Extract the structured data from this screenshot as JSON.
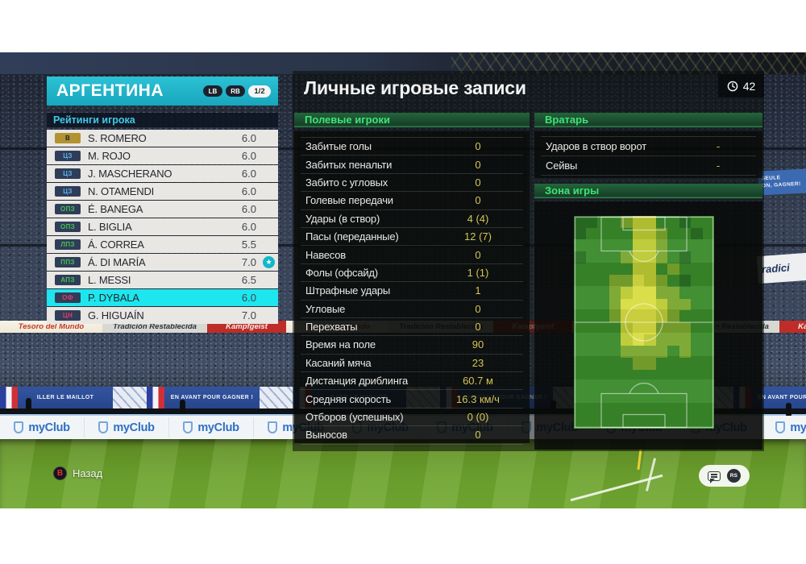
{
  "team_panel": {
    "team_name": "АРГЕНТИНА",
    "lb_label": "LB",
    "rb_label": "RB",
    "page_indicator": "1/2",
    "section_title": "Рейтинги игрока",
    "players": [
      {
        "pos": "В",
        "type": "gk",
        "name": "S. ROMERO",
        "rating": "6.0"
      },
      {
        "pos": "ЦЗ",
        "type": "df",
        "name": "M. ROJO",
        "rating": "6.0"
      },
      {
        "pos": "ЦЗ",
        "type": "df",
        "name": "J. MASCHERANO",
        "rating": "6.0"
      },
      {
        "pos": "ЦЗ",
        "type": "df",
        "name": "N. OTAMENDI",
        "rating": "6.0"
      },
      {
        "pos": "ОПЗ",
        "type": "mf",
        "name": "É. BANEGA",
        "rating": "6.0"
      },
      {
        "pos": "ОПЗ",
        "type": "mf",
        "name": "L. BIGLIA",
        "rating": "6.0"
      },
      {
        "pos": "ЛПЗ",
        "type": "mf",
        "name": "Á. CORREA",
        "rating": "5.5"
      },
      {
        "pos": "ППЗ",
        "type": "mf",
        "name": "Á. DI MARÍA",
        "rating": "7.0",
        "star": true
      },
      {
        "pos": "АПЗ",
        "type": "mf",
        "name": "L. MESSI",
        "rating": "6.5"
      },
      {
        "pos": "ОФ",
        "type": "fw",
        "name": "P. DYBALA",
        "rating": "6.0",
        "selected": true
      },
      {
        "pos": "ЦН",
        "type": "fw",
        "name": "G. HIGUAÍN",
        "rating": "7.0"
      }
    ]
  },
  "records": {
    "title": "Личные игровые записи",
    "match_time": "42",
    "field_section": {
      "title": "Полевые игроки",
      "stats": [
        {
          "label": "Забитые голы",
          "value": "0"
        },
        {
          "label": "Забитых пенальти",
          "value": "0"
        },
        {
          "label": "Забито с угловых",
          "value": "0"
        },
        {
          "label": "Голевые передачи",
          "value": "0"
        },
        {
          "label": "Удары (в створ)",
          "value": "4 (4)"
        },
        {
          "label": "Пасы (переданные)",
          "value": "12 (7)"
        },
        {
          "label": "Навесов",
          "value": "0"
        },
        {
          "label": "Фолы (офсайд)",
          "value": "1 (1)"
        },
        {
          "label": "Штрафные удары",
          "value": "1"
        },
        {
          "label": "Угловые",
          "value": "0"
        },
        {
          "label": "Перехваты",
          "value": "0"
        },
        {
          "label": "Время на поле",
          "value": "90"
        },
        {
          "label": "Касаний мяча",
          "value": "23"
        },
        {
          "label": "Дистанция дриблинга",
          "value": "60.7 м"
        },
        {
          "label": "Средняя скорость",
          "value": "16.3 км/ч"
        },
        {
          "label": "Отборов (успешных)",
          "value": "0 (0)"
        },
        {
          "label": "Выносов",
          "value": "0"
        }
      ]
    },
    "gk_section": {
      "title": "Вратарь",
      "stats": [
        {
          "label": "Ударов в створ ворот",
          "value": "-"
        },
        {
          "label": "Сейвы",
          "value": "-"
        }
      ]
    },
    "zone_section": {
      "title": "Зона игры"
    }
  },
  "chart_data": {
    "type": "heatmap",
    "title": "Зона игры",
    "cols": 12,
    "rows": 18,
    "palette": [
      "#1f5c1f",
      "#2a6f24",
      "#3a8a2b",
      "#7aa62e",
      "#bcca33",
      "#d8dd42"
    ],
    "grid": [
      "112234422122",
      "122224432212",
      "222224432222",
      "122234432122",
      "222224423222",
      "222335432122",
      "222345533222",
      "222355543322",
      "222355543222",
      "222245533322",
      "222245433322",
      "222233332322",
      "222223322222",
      "222222222222",
      "222222222222",
      "222222222222",
      "222222222222",
      "222222222222"
    ]
  },
  "footer": {
    "back_button": "B",
    "back_label": "Назад"
  },
  "background": {
    "ad_boards": [
      "Tesoro del Mundo",
      "Tradición Restablecida",
      "Kampfgeist"
    ],
    "fan_banners": [
      "ILLER LE MAILLOT",
      "EN AVANT POUR GAGNER !"
    ],
    "side_banner_lines": [
      "SEULE",
      "ON, GAGNER!"
    ],
    "side_banner_white": "radici",
    "myclub_label": "myClub"
  },
  "colors": {
    "accent": "#1fb3c6",
    "selected_row": "#1ee6ee",
    "stat_value": "#d6c554",
    "header_green_text": "#3fe476"
  }
}
